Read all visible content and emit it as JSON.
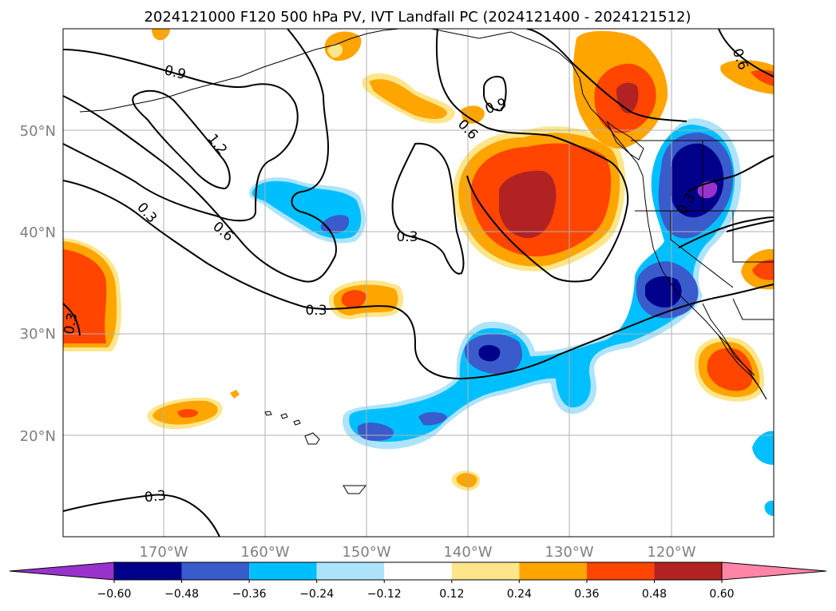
{
  "title": "2024121000 F120 500 hPa PV, IVT Landfall PC (2024121400 - 2024121512)",
  "map": {
    "lat_labels": [
      "50°N",
      "40°N",
      "30°N",
      "20°N"
    ],
    "lon_labels": [
      "170°W",
      "160°W",
      "150°W",
      "140°W",
      "130°W",
      "120°W"
    ],
    "grid": true,
    "contour_labels": [
      "0.9",
      "1.2",
      "0.3",
      "0.6",
      "0.9",
      "0.6",
      "0.3",
      "0.3",
      "0.3",
      "0.3",
      "0.6",
      "0.3"
    ],
    "colors": {
      "neg_extend": "#9932cc",
      "neg_060": "#00008b",
      "neg_048": "#3a5bcc",
      "neg_036": "#00bfff",
      "neg_024": "#aee4fb",
      "neutral": "#ffffff",
      "pos_012": "#fde68a",
      "pos_024": "#ffa500",
      "pos_036": "#ff4500",
      "pos_048": "#b22222",
      "pos_extend": "#ff85a8"
    }
  },
  "colorbar": {
    "ticks": [
      "−0.60",
      "−0.48",
      "−0.36",
      "−0.24",
      "−0.12",
      "0.12",
      "0.24",
      "0.36",
      "0.48",
      "0.60"
    ],
    "colors": [
      "#00008b",
      "#3a5bcc",
      "#00bfff",
      "#aee4fb",
      "#ffffff",
      "#fde68a",
      "#ffa500",
      "#ff4500",
      "#b22222"
    ],
    "extend_low_color": "#9932cc",
    "extend_high_color": "#ff85a8"
  }
}
